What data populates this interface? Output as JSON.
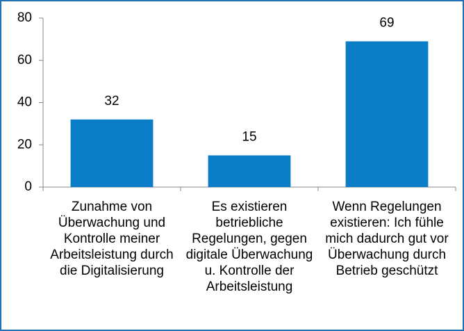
{
  "chart_data": {
    "type": "bar",
    "categories": [
      "Zunahme von Überwachung und Kontrolle meiner Arbeitsleistung durch die Digitalisierung",
      "Es existieren betriebliche Regelungen, gegen digitale Überwachung u. Kontrolle der Arbeitsleistung",
      "Wenn Regelungen existieren: Ich fühle mich dadurch gut vor Überwachung durch Betrieb geschützt"
    ],
    "values": [
      32,
      15,
      69
    ],
    "color": "#0b7cc6",
    "ylim": [
      0,
      80
    ],
    "yticks": [
      0,
      20,
      40,
      60,
      80
    ],
    "grid": false
  }
}
